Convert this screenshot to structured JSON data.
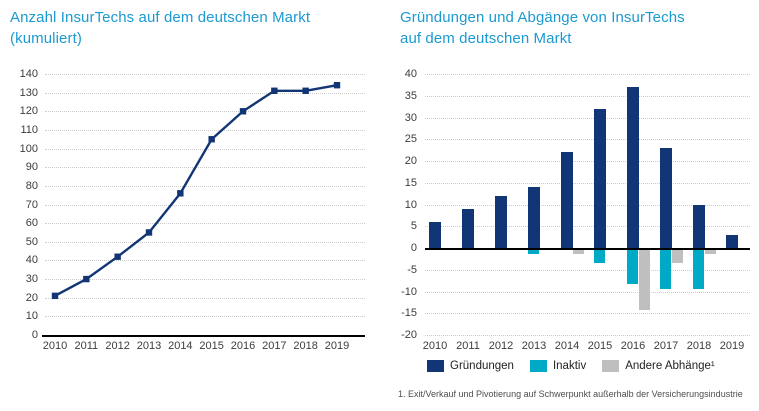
{
  "left_chart": {
    "title_line1": "Anzahl InsurTechs auf dem deutschen Markt",
    "title_line2": "(kumuliert)"
  },
  "right_chart": {
    "title_line1": "Gründungen und Abgänge von InsurTechs",
    "title_line2": "auf dem deutschen Markt",
    "footnote": "1. Exit/Verkauf und Pivotierung auf Schwerpunkt außerhalb der Versicherungsindustrie"
  },
  "colors": {
    "title_blue": "#1b9ad2",
    "navy": "#123575",
    "teal": "#00aac6",
    "gray": "#bfbfbf",
    "axis": "#000000",
    "gridline": "#cccccc",
    "tick_label": "#3d3d3d"
  },
  "chart_data": [
    {
      "type": "line",
      "title": "Anzahl InsurTechs auf dem deutschen Markt (kumuliert)",
      "x": [
        "2010",
        "2011",
        "2012",
        "2013",
        "2014",
        "2015",
        "2016",
        "2017",
        "2018",
        "2019"
      ],
      "values": [
        21,
        30,
        42,
        55,
        76,
        105,
        120,
        131,
        131,
        134
      ],
      "ylim": [
        0,
        140
      ],
      "ytick_step": 10,
      "grid": true,
      "marker": "square",
      "color": "#123575",
      "xlabel": "",
      "ylabel": "",
      "legend_position": "none"
    },
    {
      "type": "bar",
      "title": "Gründungen und Abgänge von InsurTechs auf dem deutschen Markt",
      "categories": [
        "2010",
        "2011",
        "2012",
        "2013",
        "2014",
        "2015",
        "2016",
        "2017",
        "2018",
        "2019"
      ],
      "series": [
        {
          "name": "Gründungen",
          "color": "#123575",
          "values": [
            6,
            9,
            12,
            14,
            22,
            32,
            37,
            23,
            10,
            3
          ]
        },
        {
          "name": "Inaktiv",
          "color": "#00aac6",
          "values": [
            0,
            0,
            0,
            -1,
            0,
            -3,
            -8,
            -9,
            -9,
            0
          ]
        },
        {
          "name": "Andere Abhänge¹",
          "color": "#bfbfbf",
          "values": [
            0,
            0,
            0,
            0,
            -1,
            0,
            -14,
            -3,
            -1,
            0
          ]
        }
      ],
      "ylim": [
        -20,
        40
      ],
      "ytick_step": 5,
      "grid": true,
      "legend_position": "bottom",
      "footnote": "1. Exit/Verkauf und Pivotierung auf Schwerpunkt außerhalb der Versicherungsindustrie"
    }
  ]
}
